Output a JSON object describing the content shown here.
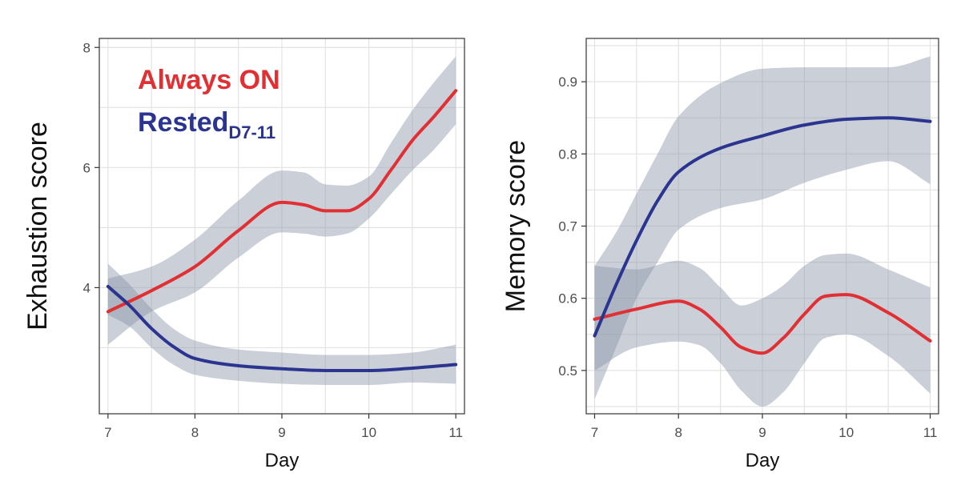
{
  "colors": {
    "always_on": "#e03034",
    "rested": "#2b3590",
    "ribbon": "#8c95a8",
    "grid": "#e3e3e3",
    "panel_border": "#333333"
  },
  "chart_data": [
    {
      "type": "line",
      "xlabel": "Day",
      "ylabel": "Exhaustion score",
      "xlim": [
        6.9,
        11.1
      ],
      "ylim": [
        1.9,
        8.15
      ],
      "x_ticks": [
        7,
        8,
        9,
        10,
        11
      ],
      "y_ticks": [
        4,
        6,
        8
      ],
      "grid": true,
      "legend": {
        "placement": "top-left",
        "entries": [
          {
            "series": "always_on",
            "text": "Always ON",
            "subscript": ""
          },
          {
            "series": "rested",
            "text": "Rested",
            "subscript": "D7-11"
          }
        ]
      },
      "series": [
        {
          "key": "always_on",
          "x": [
            7,
            7.5,
            8,
            8.5,
            9,
            9.25,
            9.5,
            9.75,
            10,
            10.25,
            10.5,
            10.75,
            11
          ],
          "y": [
            3.6,
            3.95,
            4.35,
            4.95,
            5.42,
            5.38,
            5.28,
            5.28,
            5.48,
            5.95,
            6.45,
            6.85,
            7.28
          ],
          "lower": [
            3.05,
            3.6,
            3.92,
            4.5,
            4.92,
            4.9,
            4.85,
            4.9,
            5.15,
            5.55,
            5.95,
            6.3,
            6.72
          ],
          "upper": [
            4.15,
            4.35,
            4.8,
            5.45,
            5.95,
            5.92,
            5.72,
            5.7,
            5.85,
            6.4,
            6.95,
            7.42,
            7.85
          ]
        },
        {
          "key": "rested",
          "x": [
            7,
            7.25,
            7.5,
            7.75,
            8,
            8.5,
            9,
            9.5,
            10,
            10.5,
            11
          ],
          "y": [
            4.02,
            3.7,
            3.32,
            3.02,
            2.82,
            2.7,
            2.65,
            2.62,
            2.62,
            2.66,
            2.72
          ],
          "lower": [
            3.55,
            3.35,
            3.0,
            2.72,
            2.55,
            2.45,
            2.4,
            2.38,
            2.38,
            2.42,
            2.4
          ],
          "upper": [
            4.4,
            4.05,
            3.65,
            3.32,
            3.12,
            2.97,
            2.92,
            2.88,
            2.88,
            2.92,
            3.05
          ]
        }
      ]
    },
    {
      "type": "line",
      "xlabel": "Day",
      "ylabel": "Memory score",
      "xlim": [
        6.9,
        11.1
      ],
      "ylim": [
        0.44,
        0.96
      ],
      "x_ticks": [
        7,
        8,
        9,
        10,
        11
      ],
      "y_ticks": [
        0.5,
        0.6,
        0.7,
        0.8,
        0.9
      ],
      "grid": true,
      "series": [
        {
          "key": "always_on",
          "x": [
            7,
            7.5,
            8,
            8.25,
            8.5,
            8.75,
            9,
            9.25,
            9.5,
            9.75,
            10,
            10.5,
            11
          ],
          "y": [
            0.571,
            0.585,
            0.596,
            0.585,
            0.56,
            0.532,
            0.524,
            0.545,
            0.578,
            0.603,
            0.605,
            0.58,
            0.541
          ],
          "lower": [
            0.5,
            0.532,
            0.54,
            0.535,
            0.51,
            0.472,
            0.45,
            0.47,
            0.51,
            0.545,
            0.55,
            0.52,
            0.468
          ],
          "upper": [
            0.645,
            0.64,
            0.652,
            0.642,
            0.615,
            0.59,
            0.6,
            0.618,
            0.645,
            0.66,
            0.662,
            0.64,
            0.615
          ]
        },
        {
          "key": "rested",
          "x": [
            7,
            7.25,
            7.5,
            7.75,
            8,
            8.5,
            9,
            9.5,
            10,
            10.5,
            11
          ],
          "y": [
            0.548,
            0.617,
            0.68,
            0.735,
            0.775,
            0.808,
            0.825,
            0.84,
            0.848,
            0.85,
            0.845
          ],
          "lower": [
            0.46,
            0.53,
            0.6,
            0.65,
            0.695,
            0.725,
            0.737,
            0.76,
            0.778,
            0.79,
            0.758
          ],
          "upper": [
            0.645,
            0.69,
            0.745,
            0.8,
            0.852,
            0.898,
            0.918,
            0.92,
            0.92,
            0.92,
            0.935
          ]
        }
      ]
    }
  ]
}
